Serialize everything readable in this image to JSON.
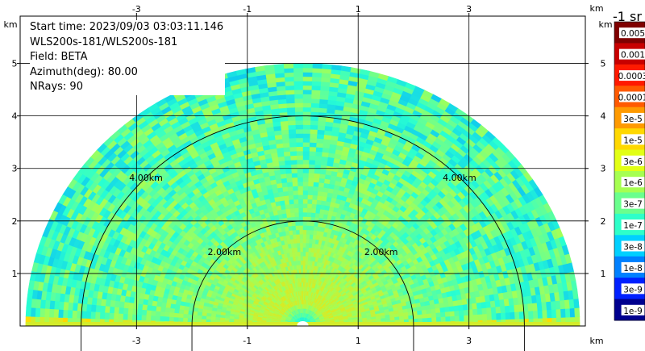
{
  "chart_data": {
    "type": "heatmap",
    "info": {
      "start_time": "Start time: 2023/09/03 03:03:11.146",
      "instrument": "WLS200s-181/WLS200s-181",
      "field": "Field: BETA",
      "azimuth": "Azimuth(deg): 80.00",
      "nrays": "NRays: 90"
    },
    "x_axis": {
      "unit": "km",
      "range": [
        -5.1,
        5.1
      ],
      "ticks": [
        -3,
        -1,
        1,
        3
      ],
      "tick_labels": [
        "-3",
        "-1",
        "1",
        "3"
      ]
    },
    "y_axis": {
      "unit": "km",
      "range": [
        0,
        5.9
      ],
      "ticks": [
        1,
        2,
        3,
        4,
        5
      ],
      "tick_labels": [
        "1",
        "2",
        "3",
        "4",
        "5"
      ]
    },
    "grid": true,
    "max_range_km": 5.0,
    "range_rings": [
      {
        "radius_km": 2,
        "label": "2.00km"
      },
      {
        "radius_km": 4,
        "label": "4.00km"
      }
    ],
    "colorbar": {
      "unit": "-1 sr",
      "scale": "log",
      "labels": [
        "0.005",
        "0.001",
        "0.0003",
        "0.0001",
        "3e-5",
        "1e-5",
        "3e-6",
        "1e-6",
        "3e-7",
        "1e-7",
        "3e-8",
        "1e-8",
        "3e-9",
        "1e-9"
      ],
      "colors": [
        "#7f0000",
        "#c80000",
        "#ff1a00",
        "#ff5a00",
        "#ff9a00",
        "#ffd800",
        "#e2ff15",
        "#a6ff51",
        "#6aff8d",
        "#2effc9",
        "#00d0ff",
        "#0080ff",
        "#0020ff",
        "#00008f"
      ]
    },
    "field_profile": {
      "near_ring_km": 0.45,
      "near_level": 0.68,
      "mid_level": 0.58,
      "far_level": 0.52,
      "surface_band_level": 0.42
    }
  }
}
